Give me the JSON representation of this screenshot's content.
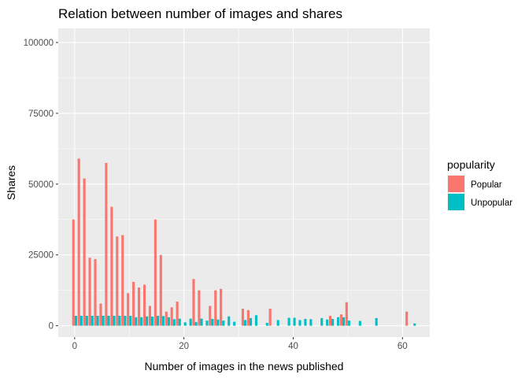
{
  "chart_data": {
    "type": "bar",
    "title": "Relation between number of images and shares",
    "xlabel": "Number of images in the news published",
    "ylabel": "Shares",
    "xlim": [
      -3,
      65
    ],
    "ylim": [
      -4000,
      105000
    ],
    "x_ticks": [
      0,
      20,
      40,
      60
    ],
    "y_ticks": [
      0,
      25000,
      50000,
      75000,
      100000
    ],
    "x_tick_labels": [
      "0",
      "20",
      "40",
      "60"
    ],
    "y_tick_labels": [
      "0",
      "25000",
      "50000",
      "75000",
      "100000"
    ],
    "grid": true,
    "legend": {
      "title": "popularity",
      "position": "right"
    },
    "series": [
      {
        "name": "Popular",
        "color": "#F8766D",
        "points": [
          [
            0,
            37500
          ],
          [
            1,
            59000
          ],
          [
            2,
            52000
          ],
          [
            3,
            24000
          ],
          [
            4,
            23500
          ],
          [
            5,
            7800
          ],
          [
            6,
            57500
          ],
          [
            7,
            42000
          ],
          [
            8,
            31500
          ],
          [
            9,
            32000
          ],
          [
            10,
            11500
          ],
          [
            11,
            15500
          ],
          [
            12,
            13500
          ],
          [
            13,
            14500
          ],
          [
            14,
            7000
          ],
          [
            15,
            37500
          ],
          [
            16,
            25000
          ],
          [
            17,
            5000
          ],
          [
            18,
            6500
          ],
          [
            19,
            8500
          ],
          [
            22,
            16500
          ],
          [
            23,
            12500
          ],
          [
            25,
            7000
          ],
          [
            26,
            12500
          ],
          [
            27,
            13000
          ],
          [
            31,
            6000
          ],
          [
            32,
            5500
          ],
          [
            36,
            6000
          ],
          [
            47,
            3500
          ],
          [
            49,
            4000
          ],
          [
            50,
            8300
          ],
          [
            61,
            5000
          ]
        ]
      },
      {
        "name": "Unpopular",
        "color": "#00BFC4",
        "points": [
          [
            0,
            3500
          ],
          [
            1,
            3500
          ],
          [
            2,
            3500
          ],
          [
            3,
            3500
          ],
          [
            4,
            3500
          ],
          [
            5,
            3500
          ],
          [
            6,
            3500
          ],
          [
            7,
            3500
          ],
          [
            8,
            3500
          ],
          [
            9,
            3500
          ],
          [
            10,
            3500
          ],
          [
            11,
            3000
          ],
          [
            12,
            3000
          ],
          [
            13,
            3300
          ],
          [
            14,
            3200
          ],
          [
            15,
            3500
          ],
          [
            16,
            3400
          ],
          [
            17,
            3000
          ],
          [
            18,
            2300
          ],
          [
            19,
            2500
          ],
          [
            20,
            1200
          ],
          [
            21,
            2500
          ],
          [
            22,
            1300
          ],
          [
            23,
            2500
          ],
          [
            24,
            1800
          ],
          [
            25,
            2400
          ],
          [
            26,
            2200
          ],
          [
            27,
            1800
          ],
          [
            28,
            3300
          ],
          [
            29,
            1400
          ],
          [
            31,
            2000
          ],
          [
            32,
            2700
          ],
          [
            33,
            3700
          ],
          [
            35,
            1000
          ],
          [
            37,
            2000
          ],
          [
            39,
            2800
          ],
          [
            40,
            2800
          ],
          [
            41,
            2000
          ],
          [
            42,
            2400
          ],
          [
            43,
            2300
          ],
          [
            45,
            2700
          ],
          [
            46,
            2200
          ],
          [
            47,
            2400
          ],
          [
            48,
            3000
          ],
          [
            49,
            3000
          ],
          [
            50,
            1800
          ],
          [
            52,
            1700
          ],
          [
            55,
            2700
          ],
          [
            62,
            800
          ]
        ]
      }
    ]
  }
}
